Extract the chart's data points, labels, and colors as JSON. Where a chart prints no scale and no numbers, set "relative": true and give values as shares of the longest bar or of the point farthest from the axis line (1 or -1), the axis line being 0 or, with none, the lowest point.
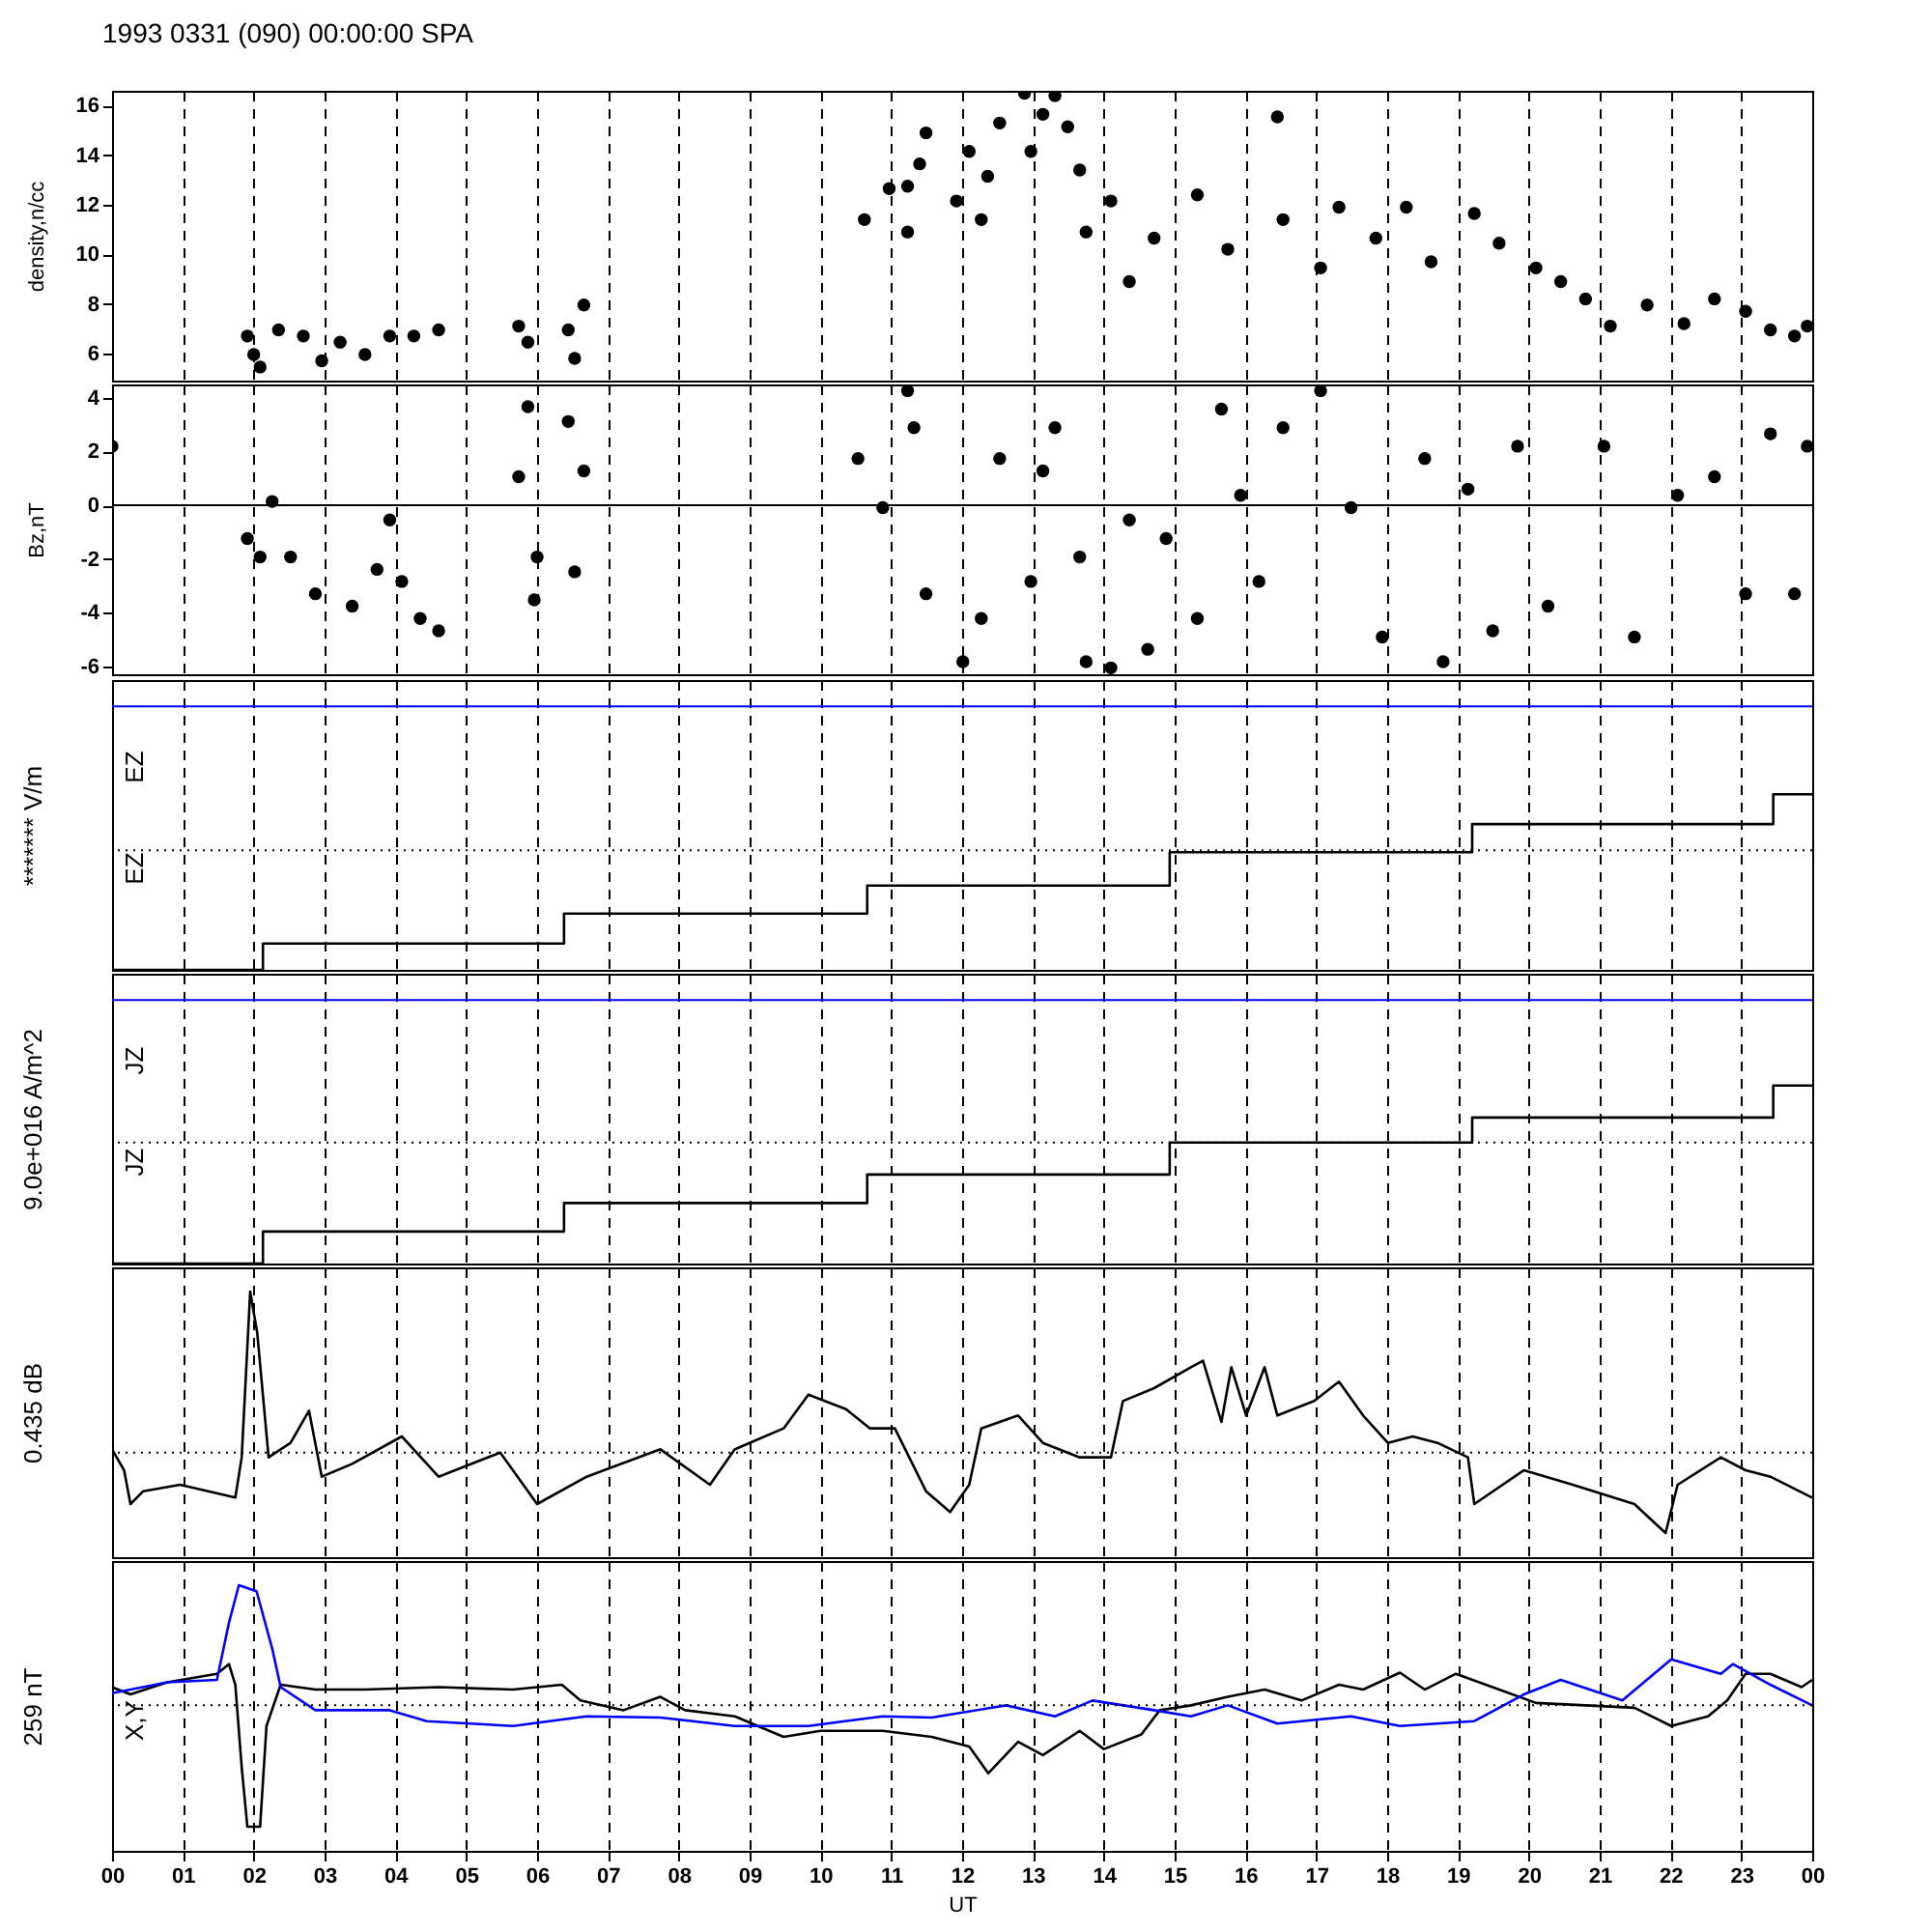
{
  "chart_data": [
    {
      "type": "scatter",
      "title": "1993 0331 (090) 00:00:00 SPA",
      "ylabel": "density,n/cc",
      "marker": "circle",
      "grid": "x",
      "tick_labels": "y",
      "xlim": [
        0,
        24
      ],
      "xticks": [
        0,
        1,
        2,
        3,
        4,
        5,
        6,
        7,
        8,
        9,
        10,
        11,
        12,
        13,
        14,
        15,
        16,
        17,
        18,
        19,
        20,
        21,
        22,
        23,
        24
      ],
      "ylim": [
        4.9,
        16.6
      ],
      "yticks": [
        6,
        8,
        10,
        12,
        14,
        16
      ],
      "x": [
        1.91,
        2.0,
        2.09,
        2.35,
        2.7,
        2.96,
        3.22,
        3.57,
        3.92,
        4.26,
        4.61,
        5.74,
        5.87,
        6.44,
        6.53,
        6.66,
        10.62,
        10.97,
        11.23,
        11.23,
        11.4,
        11.49,
        11.92,
        12.1,
        12.27,
        12.36,
        12.53,
        12.88,
        12.97,
        13.14,
        13.31,
        13.49,
        13.66,
        13.75,
        14.1,
        14.36,
        14.71,
        15.32,
        15.75,
        16.45,
        16.53,
        17.06,
        17.32,
        17.84,
        18.27,
        18.62,
        19.23,
        19.58,
        20.1,
        20.45,
        20.8,
        21.15,
        21.67,
        22.19,
        22.62,
        23.06,
        23.41,
        23.75,
        23.93
      ],
      "series": [
        {
          "color": "#000000",
          "values": [
            6.7,
            5.95,
            5.45,
            6.95,
            6.7,
            5.7,
            6.45,
            5.95,
            6.7,
            6.7,
            6.95,
            7.1,
            6.45,
            6.95,
            5.8,
            7.95,
            11.4,
            12.65,
            12.75,
            10.9,
            13.65,
            14.9,
            12.15,
            14.15,
            11.4,
            13.15,
            15.3,
            16.5,
            14.15,
            15.65,
            16.4,
            15.15,
            13.4,
            10.9,
            12.15,
            8.9,
            10.65,
            12.4,
            10.2,
            15.55,
            11.4,
            9.45,
            11.9,
            10.65,
            11.9,
            9.7,
            11.65,
            10.45,
            9.45,
            8.9,
            8.2,
            7.1,
            7.95,
            7.2,
            8.2,
            7.7,
            6.95,
            6.7,
            7.1
          ]
        }
      ]
    },
    {
      "type": "scatter",
      "ylabel": "Bz,nT",
      "marker": "circle",
      "grid": "x",
      "tick_labels": "y",
      "xlim": [
        0,
        24
      ],
      "xticks": [
        0,
        1,
        2,
        3,
        4,
        5,
        6,
        7,
        8,
        9,
        10,
        11,
        12,
        13,
        14,
        15,
        16,
        17,
        18,
        19,
        20,
        21,
        22,
        23,
        24
      ],
      "ylim": [
        -6.3,
        4.5
      ],
      "yticks": [
        -6,
        -4,
        -2,
        0,
        2,
        4
      ],
      "ref_lines": [
        {
          "axis": "y",
          "value": 0,
          "color": "#000000",
          "line_style": "solid"
        }
      ],
      "x": [
        0,
        1.91,
        2.09,
        2.26,
        2.52,
        2.87,
        3.39,
        3.74,
        3.92,
        4.09,
        4.35,
        4.61,
        5.74,
        5.87,
        5.96,
        6.0,
        6.44,
        6.53,
        6.66,
        10.53,
        10.88,
        11.23,
        11.32,
        11.49,
        12.01,
        12.27,
        12.53,
        12.97,
        13.14,
        13.31,
        13.66,
        13.75,
        14.1,
        14.36,
        14.62,
        14.88,
        15.32,
        15.66,
        15.93,
        16.19,
        16.53,
        17.06,
        17.49,
        17.93,
        18.53,
        18.79,
        19.14,
        19.49,
        19.84,
        20.27,
        21.06,
        21.49,
        22.1,
        22.62,
        23.06,
        23.41,
        23.75,
        23.93
      ],
      "series": [
        {
          "color": "#000000",
          "values": [
            2.2,
            -1.24,
            -1.93,
            0.14,
            -1.93,
            -3.3,
            -3.76,
            -2.39,
            -0.55,
            -2.84,
            -4.22,
            -4.68,
            1.06,
            3.67,
            -3.53,
            -1.93,
            3.12,
            -2.48,
            1.28,
            1.74,
            -0.09,
            4.27,
            2.89,
            -3.3,
            -5.83,
            -4.22,
            1.74,
            -2.84,
            1.28,
            2.89,
            -1.93,
            -5.83,
            -6.06,
            -0.55,
            -5.37,
            -1.24,
            -4.22,
            3.58,
            0.37,
            -2.84,
            2.89,
            4.27,
            -0.09,
            -4.91,
            1.74,
            -5.83,
            0.6,
            -4.68,
            2.2,
            -3.76,
            2.2,
            -4.91,
            0.37,
            1.06,
            -3.3,
            2.66,
            -3.3,
            2.2
          ]
        }
      ]
    },
    {
      "type": "step",
      "relative": true,
      "ylabel": "******* V/m",
      "grid": "x",
      "tick_labels": false,
      "annotations": [
        "EZ",
        "EZ"
      ],
      "xlim": [
        0,
        24
      ],
      "xticks": [
        0,
        1,
        2,
        3,
        4,
        5,
        6,
        7,
        8,
        9,
        10,
        11,
        12,
        13,
        14,
        15,
        16,
        17,
        18,
        19,
        20,
        21,
        22,
        23,
        24
      ],
      "ref_lines": [
        {
          "axis": "y",
          "value": 0.68,
          "color": "#000000",
          "line_style": "dotted"
        },
        {
          "axis": "y",
          "value": 1.5,
          "color": "#0000ff",
          "line_style": "solid"
        }
      ],
      "x": [
        0,
        2.13,
        6.38,
        10.66,
        14.93,
        19.2,
        23.45,
        24
      ],
      "series": [
        {
          "color": "#000000",
          "values": [
            0,
            0.15,
            0.32,
            0.48,
            0.67,
            0.83,
            1,
            1
          ]
        }
      ]
    },
    {
      "type": "step",
      "relative": true,
      "ylabel": "9.0e+016 A/m^2",
      "grid": "x",
      "tick_labels": false,
      "annotations": [
        "JZ",
        "JZ"
      ],
      "xlim": [
        0,
        24
      ],
      "xticks": [
        0,
        1,
        2,
        3,
        4,
        5,
        6,
        7,
        8,
        9,
        10,
        11,
        12,
        13,
        14,
        15,
        16,
        17,
        18,
        19,
        20,
        21,
        22,
        23,
        24
      ],
      "ref_lines": [
        {
          "axis": "y",
          "value": 0.68,
          "color": "#000000",
          "line_style": "dotted"
        },
        {
          "axis": "y",
          "value": 1.48,
          "color": "#0000ff",
          "line_style": "solid"
        }
      ],
      "x": [
        0,
        2.13,
        6.38,
        10.66,
        14.93,
        19.2,
        23.45,
        24
      ],
      "series": [
        {
          "color": "#000000",
          "values": [
            0,
            0.18,
            0.34,
            0.5,
            0.68,
            0.82,
            1,
            1
          ]
        }
      ]
    },
    {
      "type": "line",
      "relative": true,
      "ylabel": "0.435 dB",
      "grid": "x",
      "tick_labels": false,
      "xlim": [
        0,
        24
      ],
      "xticks": [
        0,
        1,
        2,
        3,
        4,
        5,
        6,
        7,
        8,
        9,
        10,
        11,
        12,
        13,
        14,
        15,
        16,
        17,
        18,
        19,
        20,
        21,
        22,
        23,
        24
      ],
      "ref_lines": [
        {
          "axis": "y",
          "value": 0,
          "color": "#000000",
          "line_style": "dotted"
        }
      ],
      "x": [
        0,
        0.17,
        0.26,
        0.44,
        0.96,
        1.74,
        1.83,
        1.95,
        2.05,
        2.21,
        2.52,
        2.78,
        2.96,
        3.39,
        4.09,
        4.61,
        5.48,
        6.0,
        6.7,
        7.74,
        8.44,
        8.79,
        9.48,
        9.83,
        10.36,
        10.7,
        11.05,
        11.49,
        11.83,
        12.1,
        12.27,
        12.79,
        13.14,
        13.66,
        14.1,
        14.27,
        14.71,
        15.23,
        15.4,
        15.66,
        15.8,
        16.01,
        16.27,
        16.45,
        16.97,
        17.32,
        17.66,
        18.01,
        18.36,
        18.71,
        19.14,
        19.23,
        19.93,
        20.62,
        21.49,
        21.93,
        22.1,
        22.71,
        23.06,
        23.41,
        24
      ],
      "series": [
        {
          "color": "#000000",
          "values": [
            0.02,
            -0.11,
            -0.32,
            -0.24,
            -0.2,
            -0.28,
            -0.03,
            1.0,
            0.74,
            -0.03,
            0.06,
            0.26,
            -0.15,
            -0.07,
            0.1,
            -0.15,
            0,
            -0.32,
            -0.15,
            0.02,
            -0.2,
            0.02,
            0.15,
            0.36,
            0.27,
            0.15,
            0.15,
            -0.24,
            -0.37,
            -0.2,
            0.15,
            0.23,
            0.06,
            -0.03,
            -0.03,
            0.32,
            0.4,
            0.53,
            0.57,
            0.19,
            0.53,
            0.23,
            0.53,
            0.23,
            0.32,
            0.44,
            0.23,
            0.06,
            0.1,
            0.06,
            -0.03,
            -0.32,
            -0.11,
            -0.2,
            -0.32,
            -0.5,
            -0.2,
            -0.03,
            -0.11,
            -0.15,
            -0.28
          ]
        }
      ]
    },
    {
      "type": "line",
      "relative": true,
      "ylabel": "259 nT",
      "xlabel": "UT",
      "grid": "x",
      "tick_labels": "x",
      "annotations": [
        "X,Y"
      ],
      "xlim": [
        0,
        24
      ],
      "xticks": [
        {
          "value": 0,
          "label": "00"
        },
        {
          "value": 1,
          "label": "01"
        },
        {
          "value": 2,
          "label": "02"
        },
        {
          "value": 3,
          "label": "03"
        },
        {
          "value": 4,
          "label": "04"
        },
        {
          "value": 5,
          "label": "05"
        },
        {
          "value": 6,
          "label": "06"
        },
        {
          "value": 7,
          "label": "07"
        },
        {
          "value": 8,
          "label": "08"
        },
        {
          "value": 9,
          "label": "09"
        },
        {
          "value": 10,
          "label": "10"
        },
        {
          "value": 11,
          "label": "11"
        },
        {
          "value": 12,
          "label": "12"
        },
        {
          "value": 13,
          "label": "13"
        },
        {
          "value": 14,
          "label": "14"
        },
        {
          "value": 15,
          "label": "15"
        },
        {
          "value": 16,
          "label": "16"
        },
        {
          "value": 17,
          "label": "17"
        },
        {
          "value": 18,
          "label": "18"
        },
        {
          "value": 19,
          "label": "19"
        },
        {
          "value": 20,
          "label": "20"
        },
        {
          "value": 21,
          "label": "21"
        },
        {
          "value": 22,
          "label": "22"
        },
        {
          "value": 23,
          "label": "23"
        },
        {
          "value": 24,
          "label": "00"
        }
      ],
      "ref_lines": [
        {
          "axis": "y",
          "value": 0,
          "color": "#000000",
          "line_style": "dotted"
        }
      ],
      "series": [
        {
          "color": "#000000",
          "x": [
            0,
            0.26,
            0.78,
            1.48,
            1.65,
            1.74,
            1.83,
            1.91,
            2.09,
            2.18,
            2.38,
            2.87,
            3.57,
            4.61,
            5.66,
            6.35,
            6.61,
            7.22,
            7.74,
            8.09,
            8.79,
            9.48,
            10.0,
            10.88,
            11.57,
            12.1,
            12.37,
            12.79,
            13.14,
            13.66,
            14.0,
            14.53,
            14.79,
            15.23,
            15.75,
            16.27,
            16.79,
            17.32,
            17.66,
            18.18,
            18.53,
            18.97,
            19.58,
            20.1,
            20.8,
            21.49,
            22.01,
            22.53,
            22.8,
            23.06,
            23.41,
            23.85,
            24
          ],
          "values": [
            0.15,
            0.09,
            0.19,
            0.26,
            0.34,
            0.17,
            -0.51,
            -1.0,
            -1.0,
            -0.17,
            0.17,
            0.13,
            0.13,
            0.15,
            0.13,
            0.17,
            0.04,
            -0.04,
            0.07,
            -0.04,
            -0.09,
            -0.26,
            -0.21,
            -0.21,
            -0.26,
            -0.34,
            -0.56,
            -0.3,
            -0.41,
            -0.21,
            -0.36,
            -0.24,
            -0.04,
            0,
            0.07,
            0.13,
            0.04,
            0.17,
            0.13,
            0.27,
            0.13,
            0.26,
            0.13,
            0.02,
            0,
            -0.02,
            -0.17,
            -0.09,
            0.04,
            0.26,
            0.26,
            0.15,
            0.21
          ]
        },
        {
          "color": "#0000ff",
          "x": [
            0,
            0.78,
            1.48,
            1.65,
            1.79,
            2.04,
            2.26,
            2.38,
            2.87,
            3.92,
            4.44,
            5.66,
            6.7,
            7.74,
            8.79,
            9.83,
            10.88,
            11.57,
            12.62,
            13.31,
            13.84,
            14.71,
            15.23,
            15.75,
            16.45,
            17.49,
            18.18,
            19.23,
            19.93,
            20.45,
            21.32,
            22.01,
            22.71,
            22.88,
            23.41,
            24
          ],
          "values": [
            0.1,
            0.19,
            0.21,
            0.68,
            0.99,
            0.94,
            0.47,
            0.15,
            -0.04,
            -0.04,
            -0.13,
            -0.17,
            -0.09,
            -0.1,
            -0.17,
            -0.17,
            -0.09,
            -0.1,
            0,
            -0.09,
            0.04,
            -0.04,
            -0.09,
            0,
            -0.15,
            -0.09,
            -0.17,
            -0.13,
            0.09,
            0.21,
            0.04,
            0.38,
            0.26,
            0.34,
            0.17,
            0
          ]
        }
      ]
    }
  ]
}
